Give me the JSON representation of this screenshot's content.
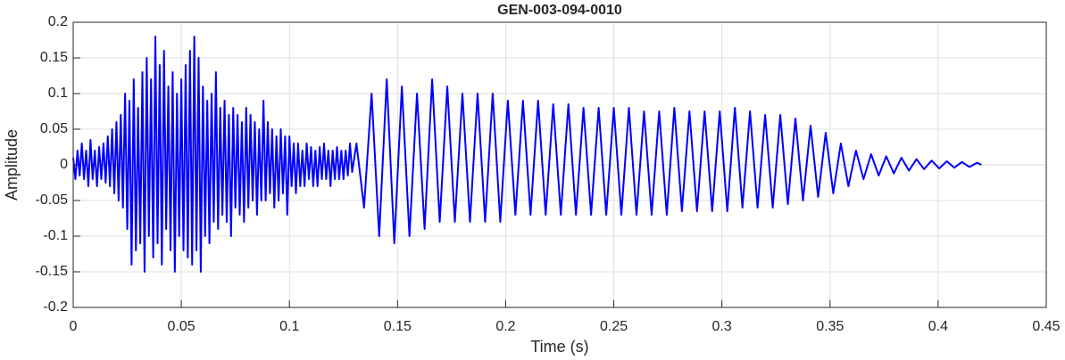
{
  "chart_data": {
    "type": "line",
    "title": "GEN-003-094-0010",
    "xlabel": "Time (s)",
    "ylabel": "Amplitude",
    "xlim": [
      0,
      0.45
    ],
    "ylim": [
      -0.2,
      0.2
    ],
    "xticks": [
      0,
      0.05,
      0.1,
      0.15,
      0.2,
      0.25,
      0.3,
      0.35,
      0.4,
      0.45
    ],
    "yticks": [
      -0.2,
      -0.15,
      -0.1,
      -0.05,
      0,
      0.05,
      0.1,
      0.15,
      0.2
    ],
    "grid": true,
    "x": [
      0.0,
      0.001,
      0.002,
      0.003,
      0.004,
      0.005,
      0.006,
      0.007,
      0.008,
      0.009,
      0.01,
      0.011,
      0.012,
      0.013,
      0.014,
      0.015,
      0.016,
      0.017,
      0.018,
      0.019,
      0.02,
      0.021,
      0.022,
      0.023,
      0.024,
      0.025,
      0.026,
      0.027,
      0.028,
      0.029,
      0.03,
      0.031,
      0.032,
      0.033,
      0.034,
      0.035,
      0.036,
      0.037,
      0.038,
      0.039,
      0.04,
      0.041,
      0.042,
      0.043,
      0.044,
      0.045,
      0.046,
      0.047,
      0.048,
      0.049,
      0.05,
      0.051,
      0.052,
      0.053,
      0.054,
      0.055,
      0.056,
      0.057,
      0.058,
      0.059,
      0.06,
      0.061,
      0.062,
      0.063,
      0.064,
      0.065,
      0.066,
      0.067,
      0.068,
      0.069,
      0.07,
      0.071,
      0.072,
      0.073,
      0.074,
      0.075,
      0.076,
      0.077,
      0.078,
      0.079,
      0.08,
      0.081,
      0.082,
      0.083,
      0.084,
      0.085,
      0.086,
      0.087,
      0.088,
      0.089,
      0.09,
      0.091,
      0.092,
      0.093,
      0.094,
      0.095,
      0.096,
      0.097,
      0.098,
      0.099,
      0.1,
      0.101,
      0.102,
      0.103,
      0.104,
      0.105,
      0.106,
      0.107,
      0.108,
      0.109,
      0.11,
      0.111,
      0.112,
      0.113,
      0.114,
      0.115,
      0.116,
      0.117,
      0.118,
      0.119,
      0.12,
      0.121,
      0.122,
      0.123,
      0.124,
      0.125,
      0.126,
      0.127,
      0.128,
      0.129,
      0.131,
      0.1345,
      0.138,
      0.1415,
      0.145,
      0.1485,
      0.152,
      0.1555,
      0.159,
      0.1625,
      0.166,
      0.1695,
      0.173,
      0.1765,
      0.18,
      0.1835,
      0.187,
      0.1905,
      0.194,
      0.1975,
      0.201,
      0.2045,
      0.208,
      0.2115,
      0.215,
      0.2185,
      0.222,
      0.2255,
      0.229,
      0.2325,
      0.236,
      0.2395,
      0.243,
      0.2465,
      0.25,
      0.2535,
      0.257,
      0.2605,
      0.264,
      0.2675,
      0.271,
      0.2745,
      0.278,
      0.2815,
      0.285,
      0.2885,
      0.292,
      0.2955,
      0.299,
      0.3025,
      0.306,
      0.3095,
      0.313,
      0.3165,
      0.32,
      0.3235,
      0.327,
      0.3305,
      0.334,
      0.3375,
      0.341,
      0.3445,
      0.348,
      0.3515,
      0.355,
      0.3585,
      0.362,
      0.3655,
      0.369,
      0.3725,
      0.376,
      0.3795,
      0.383,
      0.3865,
      0.39,
      0.3935,
      0.397,
      0.4005,
      0.404,
      0.4075,
      0.411,
      0.4145,
      0.418,
      0.42
    ],
    "series": [
      {
        "color": "#0000ff",
        "values": [
          0.01,
          -0.02,
          0.02,
          -0.015,
          0.03,
          -0.02,
          0.02,
          -0.03,
          0.035,
          -0.02,
          0.02,
          -0.03,
          0.025,
          -0.02,
          0.03,
          -0.025,
          0.04,
          -0.03,
          0.05,
          -0.04,
          0.06,
          -0.05,
          0.07,
          -0.06,
          0.1,
          -0.09,
          0.09,
          -0.14,
          0.12,
          -0.12,
          0.08,
          -0.11,
          0.13,
          -0.15,
          0.15,
          -0.1,
          0.12,
          -0.13,
          0.18,
          -0.11,
          0.14,
          -0.14,
          0.16,
          -0.09,
          0.11,
          -0.12,
          0.13,
          -0.15,
          0.1,
          -0.1,
          0.12,
          -0.12,
          0.14,
          -0.13,
          0.16,
          -0.14,
          0.18,
          -0.12,
          0.15,
          -0.15,
          0.11,
          -0.1,
          0.09,
          -0.11,
          0.1,
          -0.08,
          0.13,
          -0.09,
          0.08,
          -0.07,
          0.09,
          -0.08,
          0.07,
          -0.1,
          0.08,
          -0.06,
          0.07,
          -0.07,
          0.06,
          -0.08,
          0.08,
          -0.06,
          0.07,
          -0.05,
          0.06,
          -0.07,
          0.05,
          -0.05,
          0.09,
          -0.05,
          0.06,
          -0.04,
          0.05,
          -0.06,
          0.04,
          -0.05,
          0.05,
          -0.04,
          0.04,
          -0.07,
          0.04,
          -0.03,
          0.03,
          -0.04,
          0.03,
          -0.03,
          0.02,
          -0.03,
          0.03,
          -0.02,
          0.025,
          -0.03,
          0.02,
          -0.03,
          0.025,
          -0.02,
          0.03,
          -0.02,
          0.02,
          -0.03,
          0.02,
          -0.02,
          0.025,
          -0.02,
          0.02,
          -0.02,
          0.02,
          -0.015,
          0.03,
          -0.01,
          0.03,
          -0.06,
          0.1,
          -0.1,
          0.12,
          -0.11,
          0.11,
          -0.1,
          0.1,
          -0.09,
          0.12,
          -0.08,
          0.11,
          -0.08,
          0.1,
          -0.08,
          0.1,
          -0.08,
          0.1,
          -0.08,
          0.09,
          -0.07,
          0.09,
          -0.07,
          0.09,
          -0.07,
          0.085,
          -0.07,
          0.085,
          -0.07,
          0.08,
          -0.07,
          0.08,
          -0.07,
          0.08,
          -0.07,
          0.08,
          -0.07,
          0.075,
          -0.07,
          0.075,
          -0.07,
          0.08,
          -0.065,
          0.075,
          -0.065,
          0.075,
          -0.065,
          0.075,
          -0.065,
          0.08,
          -0.06,
          0.075,
          -0.06,
          0.07,
          -0.06,
          0.07,
          -0.055,
          0.065,
          -0.05,
          0.055,
          -0.045,
          0.045,
          -0.04,
          0.03,
          -0.03,
          0.02,
          -0.02,
          0.015,
          -0.015,
          0.012,
          -0.012,
          0.01,
          -0.008,
          0.008,
          -0.006,
          0.006,
          -0.005,
          0.005,
          -0.004,
          0.004,
          -0.003,
          0.003,
          0
        ]
      }
    ]
  }
}
